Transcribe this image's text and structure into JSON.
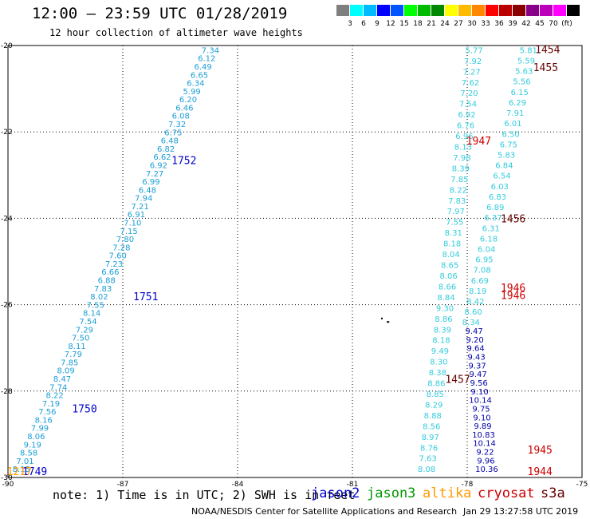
{
  "header": {
    "title": "12:00 – 23:59 UTC 01/28/2019",
    "subtitle": "12 hour collection of altimeter wave heights"
  },
  "color_scale": {
    "unit": "(ft)",
    "colors": [
      "#7f7f7f",
      "#00ffff",
      "#00bbff",
      "#0000ff",
      "#0055ff",
      "#00ff00",
      "#00bb00",
      "#008800",
      "#ffff00",
      "#ffbb00",
      "#ff8800",
      "#ff0000",
      "#bb0000",
      "#880000",
      "#880088",
      "#bb00bb",
      "#ff00ff",
      "#000000"
    ],
    "labels": [
      "3",
      "6",
      "9",
      "12",
      "15",
      "18",
      "21",
      "24",
      "27",
      "30",
      "33",
      "36",
      "39",
      "42",
      "45",
      "70"
    ]
  },
  "footer": {
    "note": "note: 1) Time is in UTC; 2) SWH is in feet",
    "satellites": [
      {
        "name": "jason2",
        "color": "#0000cc"
      },
      {
        "name": "jason3",
        "color": "#009900"
      },
      {
        "name": "altika",
        "color": "#ff9900"
      },
      {
        "name": "cryosat",
        "color": "#cc0000"
      },
      {
        "name": "s3a",
        "color": "#660000"
      }
    ],
    "credit": "NOAA/NESDIS Center for Satellite Applications and Research",
    "timestamp": "Jan 29 13:27:58 UTC 2019"
  },
  "chart_data": {
    "type": "scatter",
    "title": "12:00 – 23:59 UTC 01/28/2019",
    "subtitle": "12 hour collection of altimeter wave heights",
    "xlim": [
      -90,
      -75
    ],
    "ylim": [
      -30,
      -20
    ],
    "xticks": [
      -90,
      -87,
      -84,
      -81,
      -78,
      -75
    ],
    "yticks": [
      -20,
      -22,
      -24,
      -26,
      -28,
      -30
    ],
    "grid": true,
    "units": "ft",
    "tracks": [
      {
        "id": "track-a",
        "lon_start": -84.71,
        "lat_start": -20.1,
        "lon_end": -89.65,
        "lat_end": -29.8,
        "color": "#1a9ed6",
        "values": [
          "7.34",
          "6.12",
          "6.49",
          "6.65",
          "6.34",
          "5.99",
          "6.20",
          "6.46",
          "6.08",
          "7.32",
          "6.75",
          "6.48",
          "6.82",
          "6.62",
          "6.92",
          "7.27",
          "6.99",
          "6.48",
          "7.94",
          "7.21",
          "6.91",
          "7.10",
          "7.15",
          "7.80",
          "7.28",
          "7.60",
          "7.23",
          "6.66",
          "6.88",
          "7.83",
          "8.02",
          "7.55",
          "8.14",
          "7.54",
          "7.29",
          "7.50",
          "8.11",
          "7.79",
          "7.85",
          "8.09",
          "8.47",
          "7.74",
          "8.22",
          "7.19",
          "7.56",
          "8.16",
          "7.99",
          "8.06",
          "9.19",
          "8.58",
          "7.01",
          "8.15"
        ]
      },
      {
        "id": "track-b",
        "lon_start": -77.82,
        "lat_start": -20.1,
        "lon_end": -79.06,
        "lat_end": -29.8,
        "color": "#33ccdd",
        "values": [
          "5.77",
          "7.92",
          "7.27",
          "7.62",
          "7.20",
          "7.54",
          "6.92",
          "6.76",
          "6.96",
          "8.13",
          "7.98",
          "8.39",
          "7.85",
          "8.22",
          "7.83",
          "7.97",
          "7.55",
          "8.31",
          "8.18",
          "8.04",
          "8.65",
          "8.06",
          "8.66",
          "8.84",
          "9.30",
          "8.86",
          "8.39",
          "8.18",
          "9.49",
          "8.30",
          "8.38",
          "8.86",
          "8.85",
          "8.29",
          "8.88",
          "8.56",
          "8.97",
          "8.76",
          "7.63",
          "8.08"
        ]
      },
      {
        "id": "track-c",
        "lon_start": -76.4,
        "lat_start": -20.1,
        "lon_end": -77.9,
        "lat_end": -26.4,
        "color": "#33ccdd",
        "values": [
          "5.81",
          "5.59",
          "5.63",
          "5.56",
          "6.15",
          "6.29",
          "7.91",
          "6.01",
          "6.50",
          "6.75",
          "5.83",
          "6.84",
          "6.54",
          "6.03",
          "6.83",
          "6.89",
          "6.37",
          "6.31",
          "6.18",
          "6.04",
          "6.95",
          "7.08",
          "6.69",
          "8.19",
          "8.42",
          "8.60",
          "8.34"
        ]
      },
      {
        "id": "track-d",
        "lon_start": -77.82,
        "lat_start": -26.6,
        "lon_end": -77.49,
        "lat_end": -29.8,
        "color": "#0000aa",
        "values": [
          "9.47",
          "9.20",
          "9.64",
          "9.43",
          "9.37",
          "9.47",
          "9.56",
          "9.10",
          "10.14",
          "9.75",
          "9.10",
          "9.89",
          "10.83",
          "10.14",
          "9.22",
          "9.96",
          "10.36"
        ]
      }
    ],
    "time_labels": [
      {
        "text": "1752",
        "lon": -85.4,
        "lat": -22.65,
        "color": "#0000cc"
      },
      {
        "text": "1751",
        "lon": -86.4,
        "lat": -25.8,
        "color": "#0000cc"
      },
      {
        "text": "1750",
        "lon": -88.0,
        "lat": -28.4,
        "color": "#0000cc"
      },
      {
        "text": "1749",
        "lon": -89.3,
        "lat": -29.85,
        "color": "#0000cc"
      },
      {
        "text": "1217",
        "lon": -89.7,
        "lat": -29.85,
        "color": "#ff9900"
      },
      {
        "text": "1454",
        "lon": -75.9,
        "lat": -20.08,
        "color": "#660000"
      },
      {
        "text": "1455",
        "lon": -75.95,
        "lat": -20.5,
        "color": "#660000"
      },
      {
        "text": "1456",
        "lon": -76.8,
        "lat": -24.0,
        "color": "#660000"
      },
      {
        "text": "1457",
        "lon": -78.25,
        "lat": -27.72,
        "color": "#660000"
      },
      {
        "text": "1947",
        "lon": -77.7,
        "lat": -22.2,
        "color": "#cc0000"
      },
      {
        "text": "1946",
        "lon": -76.8,
        "lat": -25.6,
        "color": "#cc0000"
      },
      {
        "text": "1946",
        "lon": -76.8,
        "lat": -25.78,
        "color": "#cc0000"
      },
      {
        "text": "1945",
        "lon": -76.1,
        "lat": -29.35,
        "color": "#cc0000"
      },
      {
        "text": "1944",
        "lon": -76.1,
        "lat": -29.85,
        "color": "#cc0000"
      }
    ]
  }
}
